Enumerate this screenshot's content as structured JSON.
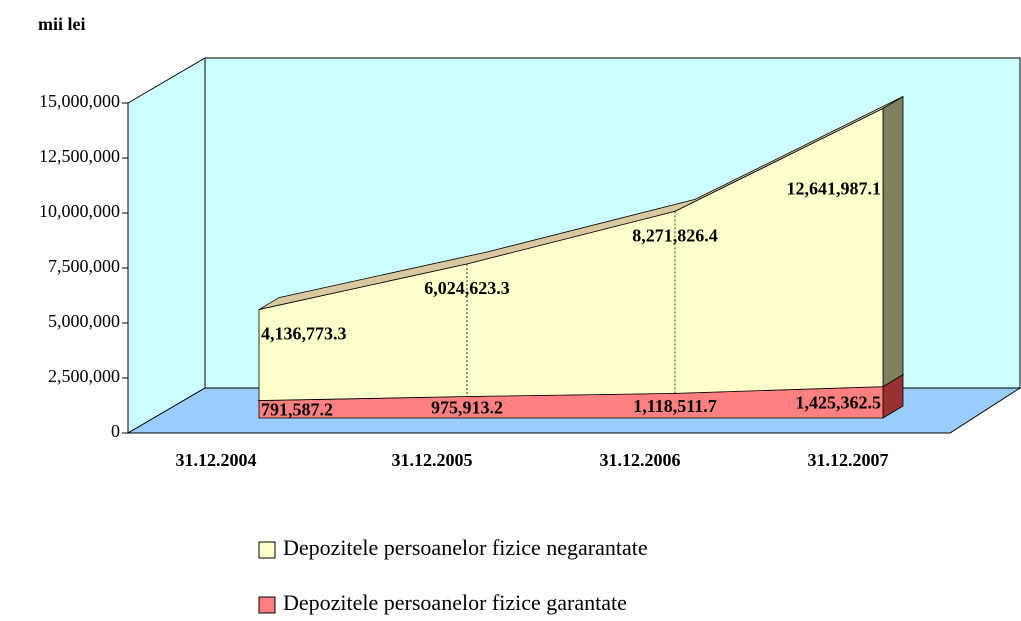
{
  "chart_data": {
    "type": "stacked_area_3d",
    "ylabel": "mii lei",
    "categories": [
      "31.12.2004",
      "31.12.2005",
      "31.12.2006",
      "31.12.2007"
    ],
    "series": [
      {
        "name": "Depozitele persoanelor fizice negarantate",
        "color": "#ffffcc",
        "values": [
          4136773.3,
          6024623.3,
          8271826.4,
          12641987.1
        ],
        "value_labels": [
          "4,136,773.3",
          "6,024,623.3",
          "8,271,826.4",
          "12,641,987.1"
        ]
      },
      {
        "name": "Depozitele persoanelor fizice garantate",
        "color": "#ff8080",
        "values": [
          791587.2,
          975913.2,
          1118511.7,
          1425362.5
        ],
        "value_labels": [
          "791,587.2",
          "975,913.2",
          "1,118,511.7",
          "1,425,362.5"
        ]
      }
    ],
    "ylim": [
      0,
      15000000
    ],
    "yticks": [
      0,
      {
        "value": 2500000,
        "label": "2,500,000"
      },
      {
        "value": 5000000,
        "label": "5,000,000"
      },
      {
        "value": 7500000,
        "label": "7,500,000"
      },
      {
        "value": 10000000,
        "label": "10,000,000"
      },
      {
        "value": 12500000,
        "label": "12,500,000"
      },
      {
        "value": 15000000,
        "label": "15,000,000"
      }
    ]
  }
}
